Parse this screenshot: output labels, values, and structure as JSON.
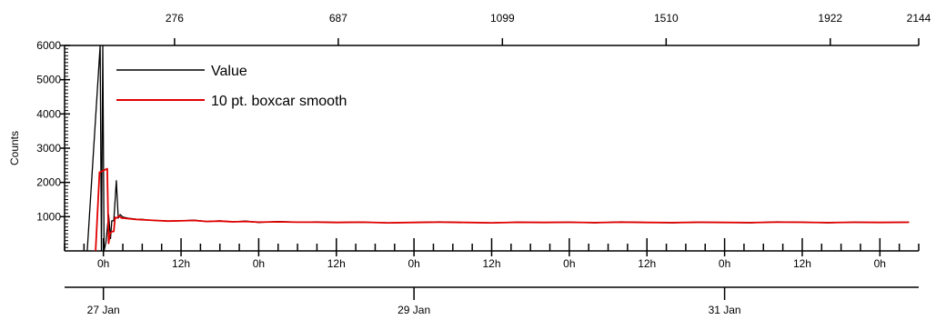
{
  "chart_data": {
    "type": "line",
    "ylabel": "Counts",
    "ylim": [
      0,
      6000
    ],
    "y_ticks": [
      1000,
      2000,
      3000,
      4000,
      5000,
      6000
    ],
    "y_tick_labels": [
      "1000",
      "2000",
      "3000",
      "4000",
      "5000",
      "6000"
    ],
    "grid": false,
    "legend_position": "top-left",
    "top_axis": {
      "label": "",
      "range": [
        0,
        2144
      ],
      "ticks": [
        276,
        687,
        1099,
        1510,
        1922,
        2144
      ],
      "tick_labels": [
        "276",
        "687",
        "1099",
        "1510",
        "1922",
        "2144"
      ]
    },
    "bottom_axis": {
      "label": "",
      "range_hours": [
        -6,
        126
      ],
      "hour_ticks": [
        0,
        12,
        24,
        36,
        48,
        60,
        72,
        84,
        96,
        108,
        120
      ],
      "hour_tick_labels": [
        "0h",
        "12h",
        "0h",
        "12h",
        "0h",
        "12h",
        "0h",
        "12h",
        "0h",
        "12h",
        "0h"
      ],
      "date_ticks": [
        0,
        48,
        96
      ],
      "date_tick_labels": [
        "27 Jan",
        "29 Jan",
        "31 Jan"
      ]
    },
    "series": [
      {
        "name": "Value",
        "color": "#000000",
        "x": [
          -2.5,
          -0.5,
          -0.3,
          -0.1,
          0.1,
          0.4,
          0.8,
          1.1,
          1.3,
          1.6,
          2.0,
          2.3,
          2.6,
          3.0,
          4,
          5,
          6,
          7,
          8,
          10,
          12,
          14,
          16,
          18,
          20,
          22,
          24,
          27,
          30,
          33,
          36,
          40,
          44,
          48,
          52,
          56,
          60,
          64,
          68,
          72,
          76,
          80,
          84,
          88,
          92,
          96,
          100,
          104,
          108,
          112,
          116,
          120,
          124.5
        ],
        "y": [
          0,
          6000,
          0,
          6000,
          0,
          260,
          1050,
          360,
          880,
          880,
          2050,
          960,
          1060,
          990,
          950,
          930,
          920,
          900,
          890,
          870,
          880,
          900,
          860,
          880,
          850,
          870,
          830,
          860,
          840,
          850,
          830,
          840,
          820,
          830,
          850,
          830,
          820,
          840,
          830,
          840,
          820,
          850,
          830,
          820,
          840,
          830,
          820,
          850,
          840,
          820,
          840,
          830,
          840
        ]
      },
      {
        "name": "10 pt. boxcar smooth",
        "color": "#e00000",
        "x": [
          -1.2,
          -0.6,
          -0.5,
          0.6,
          0.8,
          1.0,
          1.3,
          1.6,
          1.8,
          2.1,
          2.4,
          2.8,
          3.2,
          4,
          5,
          6,
          7,
          8,
          10,
          12,
          14,
          16,
          18,
          20,
          22,
          24,
          27,
          30,
          33,
          36,
          40,
          44,
          48,
          52,
          56,
          60,
          64,
          68,
          72,
          76,
          80,
          84,
          88,
          92,
          96,
          100,
          104,
          108,
          112,
          116,
          120,
          124.5
        ],
        "y": [
          0,
          2300,
          2300,
          2400,
          220,
          500,
          560,
          570,
          980,
          960,
          1020,
          960,
          955,
          940,
          920,
          910,
          900,
          890,
          870,
          880,
          890,
          860,
          870,
          850,
          860,
          840,
          850,
          840,
          840,
          830,
          840,
          820,
          830,
          840,
          830,
          820,
          835,
          830,
          835,
          825,
          840,
          830,
          825,
          835,
          830,
          825,
          840,
          835,
          825,
          835,
          830,
          835
        ]
      }
    ]
  }
}
